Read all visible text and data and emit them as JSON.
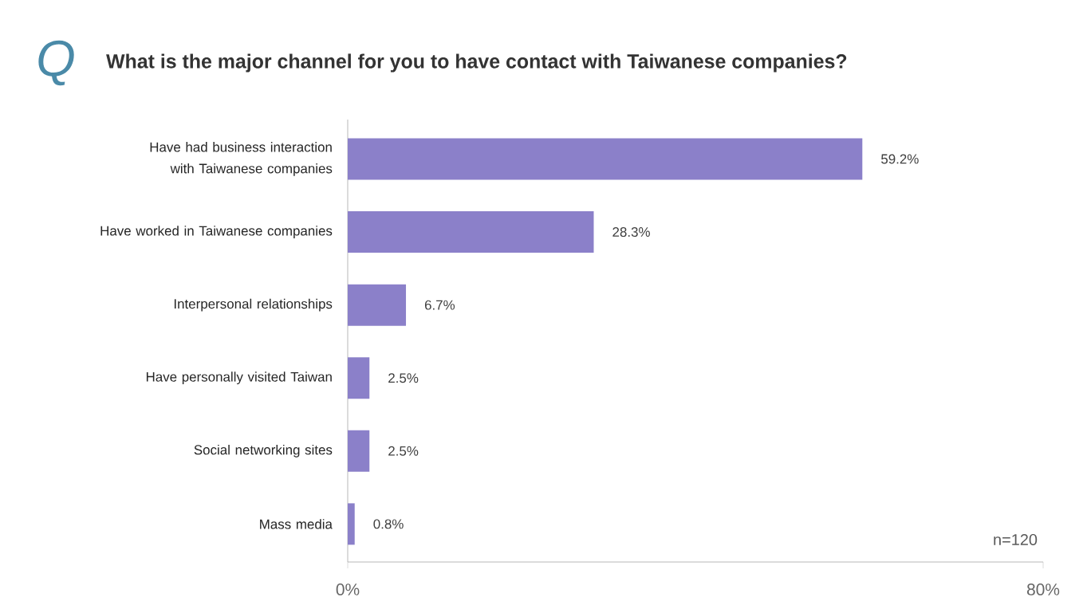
{
  "chart_data": {
    "type": "bar",
    "orientation": "horizontal",
    "title": "What is the major channel for you to have contact with Taiwanese companies?",
    "annotations": [
      "Q",
      "n=120"
    ],
    "categories": [
      "Have had business interaction with Taiwanese companies",
      "Have worked in Taiwanese companies",
      "Interpersonal relationships",
      "Have personally visited Taiwan",
      "Social networking sites",
      "Mass media"
    ],
    "values": [
      59.2,
      28.3,
      6.7,
      2.5,
      2.5,
      0.8
    ],
    "value_labels": [
      "59.2%",
      "28.3%",
      "6.7%",
      "2.5%",
      "2.5%",
      "0.8%"
    ],
    "color": "#8b80c9",
    "xlim": [
      0,
      80
    ],
    "xticks": [
      {
        "value": 0,
        "label": "0%"
      },
      {
        "value": 80,
        "label": "80%"
      }
    ]
  }
}
